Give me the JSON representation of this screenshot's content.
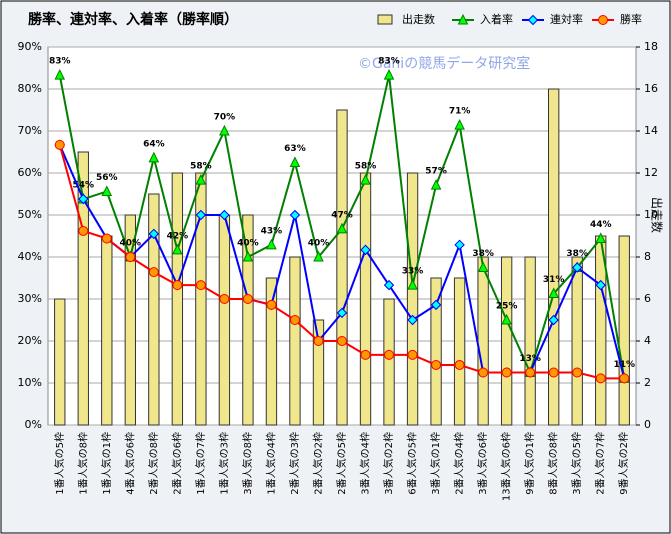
{
  "chart_data": {
    "type": "bar-line",
    "title": "勝率、連対率、入着率（勝率順）",
    "watermark": "©Ganiの競馬データ研究室",
    "y2_label": "出走数",
    "categories": [
      "1番人気の5枠",
      "1番人気の8枠",
      "1番人気の1枠",
      "4番人気の6枠",
      "2番人気の8枠",
      "2番人気の6枠",
      "1番人気の7枠",
      "1番人気の3枠",
      "3番人気の8枠",
      "1番人気の4枠",
      "2番人気の3枠",
      "2番人気の2枠",
      "2番人気の5枠",
      "3番人気の4枠",
      "3番人気の2枠",
      "6番人気の5枠",
      "3番人気の1枠",
      "2番人気の4枠",
      "3番人気の6枠",
      "13番人気の6枠",
      "9番人気の1枠",
      "8番人気の8枠",
      "3番人気の5枠",
      "2番人気の7枠",
      "9番人気の2枠"
    ],
    "series": [
      {
        "name": "出走数",
        "kind": "bar",
        "axis": "y2",
        "color": "#f0e68c",
        "values": [
          6,
          13,
          9,
          10,
          11,
          12,
          12,
          10,
          10,
          7,
          8,
          5,
          15,
          12,
          6,
          12,
          7,
          7,
          8,
          8,
          8,
          16,
          8,
          9,
          9
        ]
      },
      {
        "name": "入着率",
        "kind": "line",
        "marker": "triangle",
        "color": "#008000",
        "marker_fill": "#00ff00",
        "values": [
          83.3,
          53.8,
          55.6,
          40,
          63.6,
          41.7,
          58.3,
          70,
          40,
          42.9,
          62.5,
          40,
          46.7,
          58.3,
          83.3,
          33.3,
          57.1,
          71.4,
          37.5,
          25,
          12.5,
          31.3,
          37.5,
          44.4,
          11.1
        ],
        "value_labels": [
          "83%",
          "54%",
          "56%",
          "40%",
          "64%",
          "42%",
          "58%",
          "70%",
          "40%",
          "43%",
          "63%",
          "40%",
          "47%",
          "58%",
          "83%",
          "33%",
          "57%",
          "71%",
          "38%",
          "25%",
          "13%",
          "31%",
          "38%",
          "44%",
          "11%"
        ]
      },
      {
        "name": "連対率",
        "kind": "line",
        "marker": "diamond",
        "color": "#0000ff",
        "marker_fill": "#00ffff",
        "values": [
          66.7,
          53.8,
          44.4,
          40,
          45.5,
          33.3,
          50,
          50,
          30,
          28.6,
          50,
          20,
          26.7,
          41.7,
          33.3,
          25,
          28.6,
          42.9,
          12.5,
          12.5,
          12.5,
          25,
          37.5,
          33.3,
          11.1
        ]
      },
      {
        "name": "勝率",
        "kind": "line",
        "marker": "circle",
        "color": "#ff0000",
        "marker_fill": "#ff9900",
        "values": [
          66.7,
          46.2,
          44.4,
          40,
          36.4,
          33.3,
          33.3,
          30,
          30,
          28.6,
          25,
          20,
          20,
          16.7,
          16.7,
          16.7,
          14.3,
          14.3,
          12.5,
          12.5,
          12.5,
          12.5,
          12.5,
          11.1,
          11.1
        ]
      }
    ],
    "ylim": [
      0,
      90
    ],
    "yticks": [
      {
        "value": 0,
        "label": "0%"
      },
      {
        "value": 10,
        "label": "10%"
      },
      {
        "value": 20,
        "label": "20%"
      },
      {
        "value": 30,
        "label": "30%"
      },
      {
        "value": 40,
        "label": "40%"
      },
      {
        "value": 50,
        "label": "50%"
      },
      {
        "value": 60,
        "label": "60%"
      },
      {
        "value": 70,
        "label": "70%"
      },
      {
        "value": 80,
        "label": "80%"
      },
      {
        "value": 90,
        "label": "90%"
      }
    ],
    "y2lim": [
      0,
      18
    ],
    "y2ticks": [
      0,
      2,
      4,
      6,
      8,
      10,
      12,
      14,
      16,
      18
    ],
    "grid": true
  }
}
